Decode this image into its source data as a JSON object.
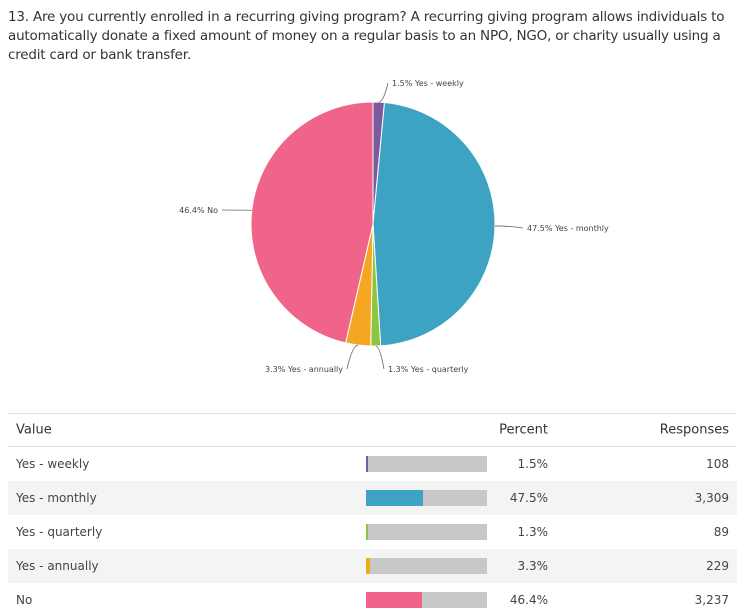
{
  "question": "13. Are you currently enrolled in a recurring giving program? A recurring giving program allows individuals to automatically donate a fixed amount of money on a regular basis to an NPO, NGO, or charity usually using a credit card or bank transfer.",
  "chart_data": {
    "type": "pie",
    "title": "",
    "slices": [
      {
        "label": "Yes - weekly",
        "percent": 1.5,
        "responses": "108",
        "color": "#7b5a9e",
        "pie_label": "1.5% Yes - weekly"
      },
      {
        "label": "Yes - monthly",
        "percent": 47.5,
        "responses": "3,309",
        "color": "#3ea3c3",
        "pie_label": "47.5% Yes - monthly"
      },
      {
        "label": "Yes - quarterly",
        "percent": 1.3,
        "responses": "89",
        "color": "#8cc63f",
        "pie_label": "1.3% Yes - quarterly"
      },
      {
        "label": "Yes - annually",
        "percent": 3.3,
        "responses": "229",
        "color": "#f5a623",
        "pie_label": "3.3% Yes - annually"
      },
      {
        "label": "No",
        "percent": 46.4,
        "responses": "3,237",
        "color": "#ef6488",
        "pie_label": "46.4% No"
      }
    ]
  },
  "table": {
    "headers": {
      "value": "Value",
      "percent": "Percent",
      "responses": "Responses"
    },
    "rows": [
      {
        "value": "Yes - weekly",
        "percent": "1.5%",
        "responses": "108"
      },
      {
        "value": "Yes - monthly",
        "percent": "47.5%",
        "responses": "3,309"
      },
      {
        "value": "Yes - quarterly",
        "percent": "1.3%",
        "responses": "89"
      },
      {
        "value": "Yes - annually",
        "percent": "3.3%",
        "responses": "229"
      },
      {
        "value": "No",
        "percent": "46.4%",
        "responses": "3,237"
      }
    ]
  }
}
